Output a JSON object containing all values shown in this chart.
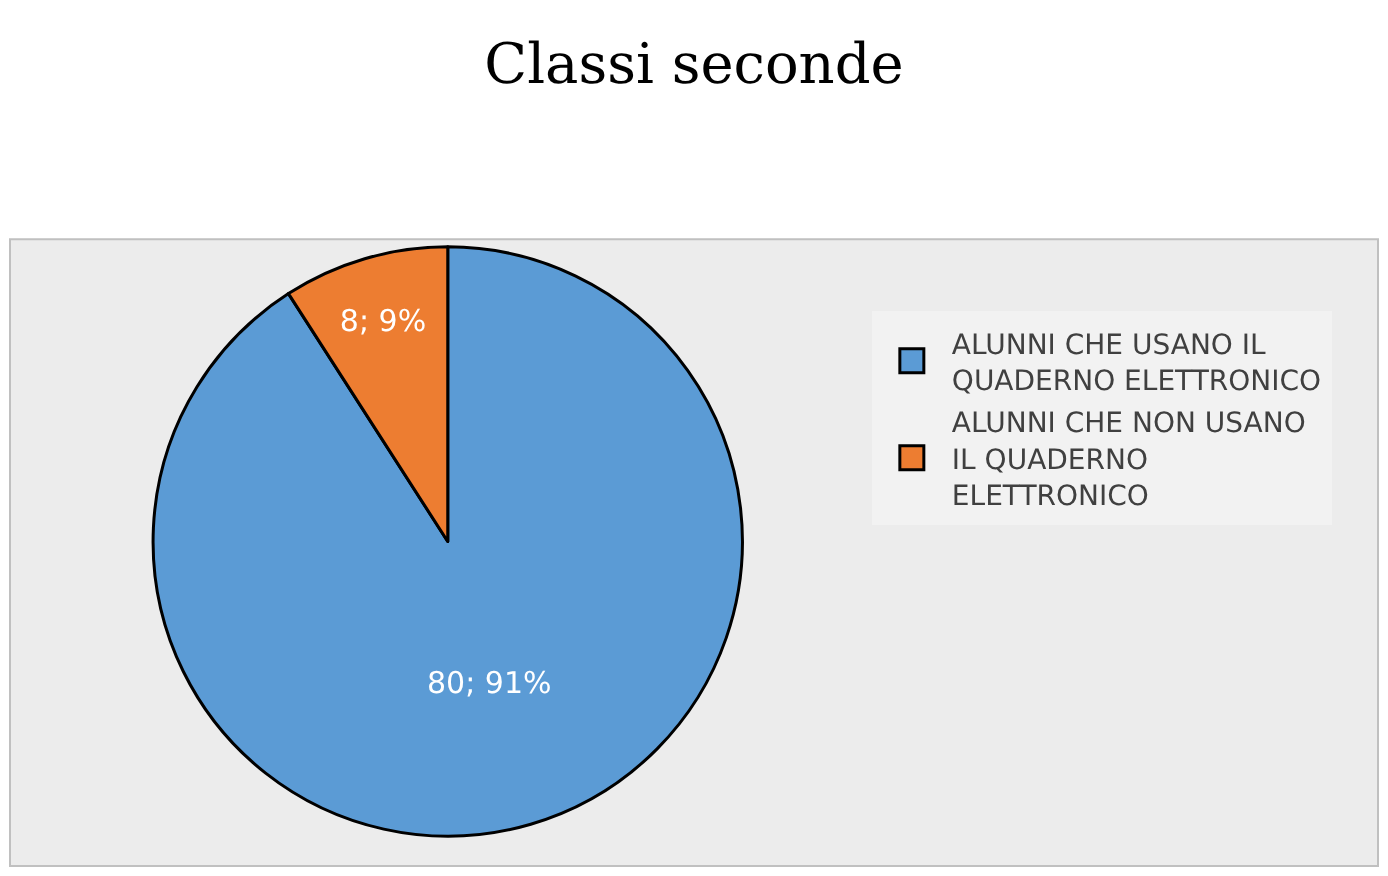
{
  "chart_data": {
    "type": "pie",
    "title": "Classi seconde",
    "categories": [
      "ALUNNI CHE USANO IL QUADERNO ELETTRONICO",
      "ALUNNI CHE NON USANO IL QUADERNO ELETTRONICO"
    ],
    "values": [
      80,
      8
    ],
    "colors": [
      "#5b9bd5",
      "#ed7d31"
    ],
    "value_labels": [
      "80; 91%",
      "8; 9%"
    ],
    "legend": "right"
  }
}
